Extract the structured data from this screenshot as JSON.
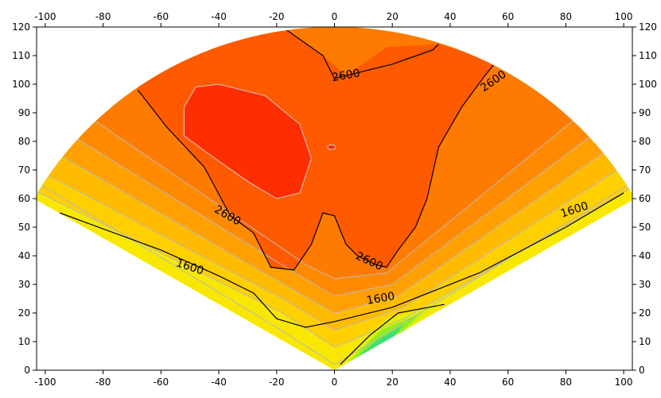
{
  "chart_data": {
    "type": "heatmap",
    "subtype": "filled-contour-sector",
    "title": "",
    "xlabel": "",
    "ylabel": "",
    "xlim": [
      -103,
      103
    ],
    "ylim": [
      0,
      120
    ],
    "x_ticks": [
      -100,
      -80,
      -60,
      -40,
      -20,
      0,
      20,
      40,
      60,
      80,
      100
    ],
    "y_ticks": [
      0,
      10,
      20,
      30,
      40,
      50,
      60,
      70,
      80,
      90,
      100,
      110,
      120
    ],
    "sector": {
      "apex": [
        0,
        0
      ],
      "radius": 120,
      "half_angle_deg": 60
    },
    "colormap": [
      "#00e0f0",
      "#40e070",
      "#90ee20",
      "#e0f000",
      "#f8e800",
      "#ffd000",
      "#ffbb00",
      "#ffa000",
      "#ff8a00",
      "#ff7a00",
      "#ff5a00",
      "#ff2e00"
    ],
    "contour_levels_labeled": [
      {
        "label": "2600",
        "positions": [
          [
            4,
            103
          ],
          [
            55,
            101
          ],
          [
            -37,
            54
          ],
          [
            12,
            38
          ]
        ]
      },
      {
        "label": "1600",
        "positions": [
          [
            -50,
            36
          ],
          [
            16,
            25
          ],
          [
            83,
            56
          ]
        ]
      }
    ],
    "regions": [
      {
        "name": "peak-max",
        "value_class": "above-2800",
        "center": [
          -32,
          80
        ]
      }
    ]
  }
}
